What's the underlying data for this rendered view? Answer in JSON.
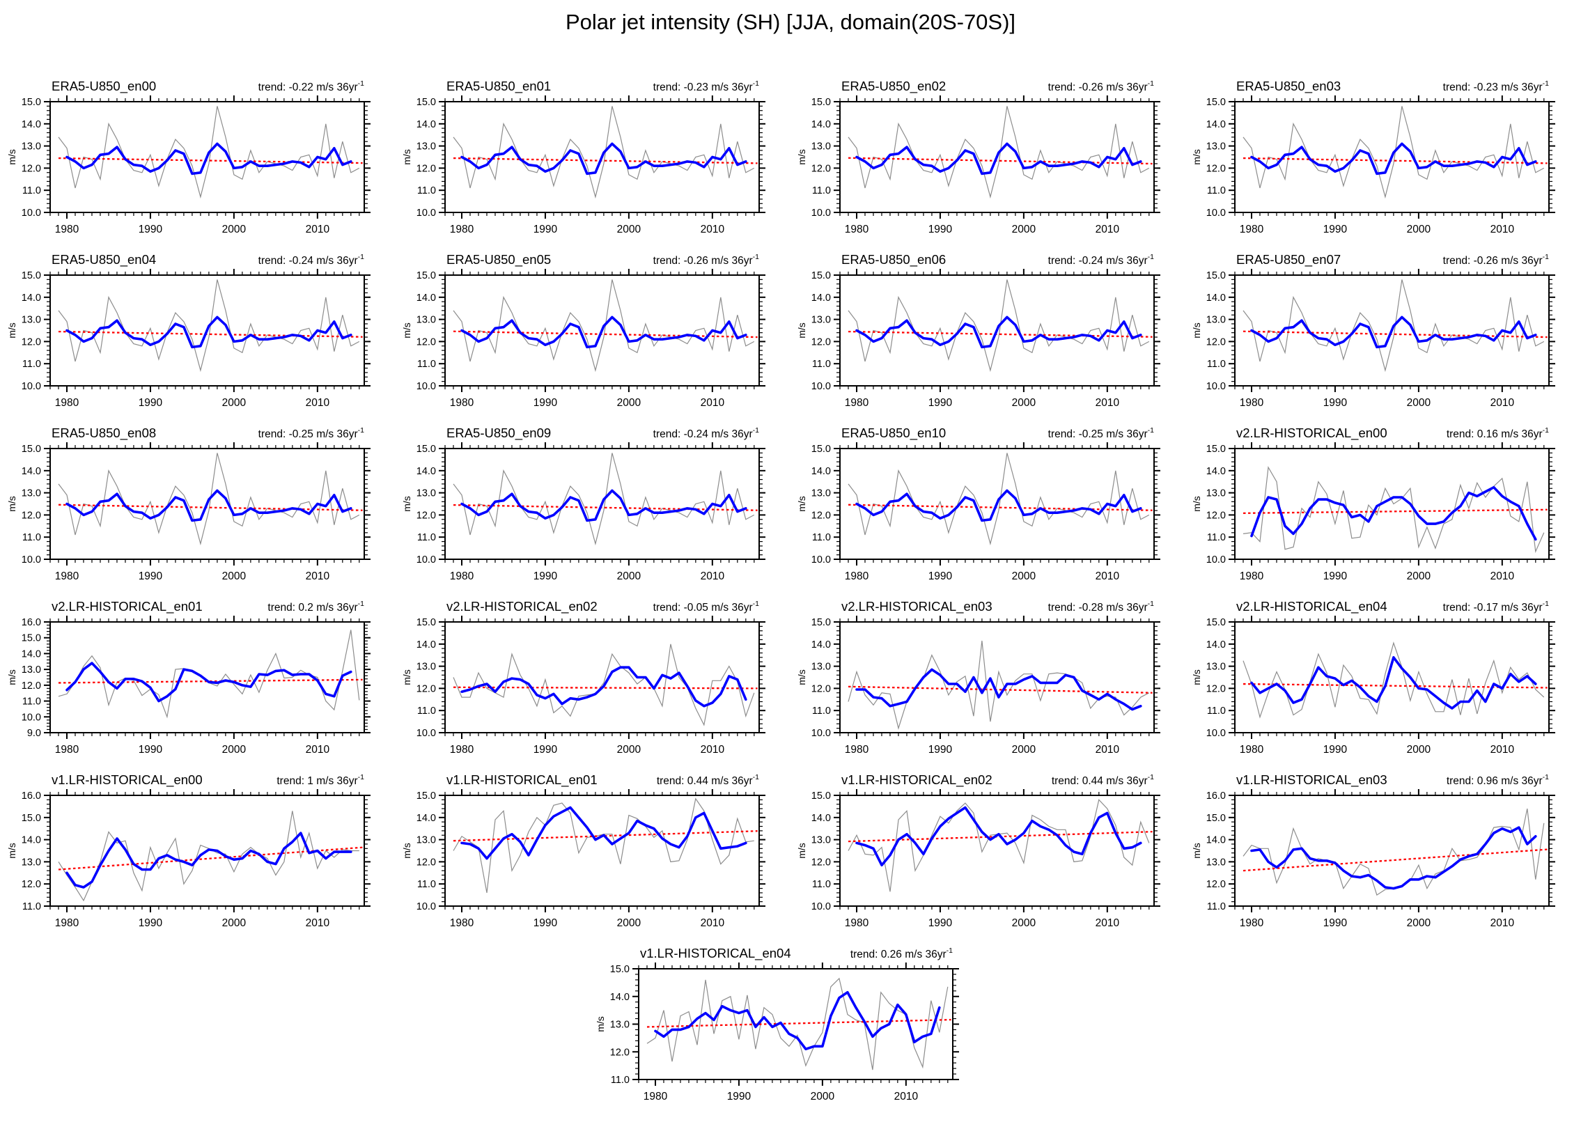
{
  "page": {
    "title": "Polar jet intensity (SH) [JJA, domain(20S-70S)]"
  },
  "colors": {
    "raw": "#8c8c8c",
    "smooth": "#0000ff",
    "trend": "#ff0000",
    "frame": "#000000",
    "text": "#000000"
  },
  "chart_data": {
    "type": "line",
    "title": "Polar jet intensity (SH) [JJA, domain(20S-70S)]",
    "ylabel": "m/s",
    "x_start_year": 1979,
    "x_end_year": 2015,
    "xlim": [
      1978,
      2015.6
    ],
    "xticks": [
      1980,
      1990,
      2000,
      2010
    ],
    "x_minor_step": 1,
    "y_major_step": 1.0,
    "y_minor_step": 0.2,
    "grid": "off",
    "legend": "none",
    "series_meaning": {
      "gray": "annual JJA mean (raw)",
      "blue": "smoothed",
      "red": "linear trend (dashed)"
    },
    "era5_base": {
      "gray": [
        13.4,
        12.9,
        11.1,
        12.5,
        12.4,
        11.5,
        14.0,
        13.3,
        12.4,
        11.9,
        11.8,
        12.6,
        11.2,
        12.4,
        13.3,
        12.9,
        12.1,
        10.7,
        12.2,
        14.8,
        13.4,
        11.7,
        11.5,
        12.8,
        11.8,
        12.3,
        12.2,
        12.1,
        11.9,
        12.5,
        12.6,
        11.65,
        14.0,
        11.55,
        13.2,
        11.8,
        12.0
      ],
      "blue": [
        12.5,
        12.3,
        12.0,
        12.15,
        12.6,
        12.65,
        12.95,
        12.4,
        12.15,
        12.1,
        11.85,
        12.0,
        12.35,
        12.8,
        12.65,
        11.75,
        11.8,
        12.7,
        13.1,
        12.75,
        12.0,
        12.05,
        12.3,
        12.1,
        12.1,
        12.15,
        12.2,
        12.3,
        12.25,
        12.05,
        12.5,
        12.4,
        12.9,
        12.15,
        12.3
      ]
    },
    "panels": [
      {
        "title": "ERA5-U850_en00",
        "trend_text": "trend: -0.22 m/s 36yr",
        "trend_sup": "-1",
        "ylim": [
          10,
          15
        ],
        "series_ref": "era5_base",
        "trend_line": [
          12.45,
          12.23
        ]
      },
      {
        "title": "ERA5-U850_en01",
        "trend_text": "trend: -0.23 m/s 36yr",
        "trend_sup": "-1",
        "ylim": [
          10,
          15
        ],
        "series_ref": "era5_base",
        "trend_line": [
          12.45,
          12.22
        ]
      },
      {
        "title": "ERA5-U850_en02",
        "trend_text": "trend: -0.26 m/s 36yr",
        "trend_sup": "-1",
        "ylim": [
          10,
          15
        ],
        "series_ref": "era5_base",
        "trend_line": [
          12.46,
          12.2
        ]
      },
      {
        "title": "ERA5-U850_en03",
        "trend_text": "trend: -0.23 m/s 36yr",
        "trend_sup": "-1",
        "ylim": [
          10,
          15
        ],
        "series_ref": "era5_base",
        "trend_line": [
          12.45,
          12.22
        ]
      },
      {
        "title": "ERA5-U850_en04",
        "trend_text": "trend: -0.24 m/s 36yr",
        "trend_sup": "-1",
        "ylim": [
          10,
          15
        ],
        "series_ref": "era5_base",
        "trend_line": [
          12.45,
          12.21
        ]
      },
      {
        "title": "ERA5-U850_en05",
        "trend_text": "trend: -0.26 m/s 36yr",
        "trend_sup": "-1",
        "ylim": [
          10,
          15
        ],
        "series_ref": "era5_base",
        "trend_line": [
          12.46,
          12.2
        ]
      },
      {
        "title": "ERA5-U850_en06",
        "trend_text": "trend: -0.24 m/s 36yr",
        "trend_sup": "-1",
        "ylim": [
          10,
          15
        ],
        "series_ref": "era5_base",
        "trend_line": [
          12.45,
          12.21
        ]
      },
      {
        "title": "ERA5-U850_en07",
        "trend_text": "trend: -0.26 m/s 36yr",
        "trend_sup": "-1",
        "ylim": [
          10,
          15
        ],
        "series_ref": "era5_base",
        "trend_line": [
          12.46,
          12.2
        ]
      },
      {
        "title": "ERA5-U850_en08",
        "trend_text": "trend: -0.25 m/s 36yr",
        "trend_sup": "-1",
        "ylim": [
          10,
          15
        ],
        "series_ref": "era5_base",
        "trend_line": [
          12.46,
          12.21
        ]
      },
      {
        "title": "ERA5-U850_en09",
        "trend_text": "trend: -0.24 m/s 36yr",
        "trend_sup": "-1",
        "ylim": [
          10,
          15
        ],
        "series_ref": "era5_base",
        "trend_line": [
          12.45,
          12.21
        ]
      },
      {
        "title": "ERA5-U850_en10",
        "trend_text": "trend: -0.25 m/s 36yr",
        "trend_sup": "-1",
        "ylim": [
          10,
          15
        ],
        "series_ref": "era5_base",
        "trend_line": [
          12.46,
          12.21
        ]
      },
      {
        "title": "v2.LR-HISTORICAL_en00",
        "trend_text": "trend: 0.16 m/s 36yr",
        "trend_sup": "-1",
        "ylim": [
          10,
          15
        ],
        "gray": [
          11.15,
          11.2,
          10.8,
          14.15,
          13.5,
          10.45,
          10.55,
          12.3,
          11.9,
          13.5,
          12.95,
          11.6,
          13.1,
          10.95,
          11.0,
          12.45,
          12.0,
          13.2,
          12.5,
          12.75,
          13.2,
          10.55,
          11.45,
          10.5,
          11.6,
          11.8,
          13.35,
          12.3,
          13.45,
          12.8,
          13.3,
          13.65,
          11.95,
          11.7,
          13.5,
          10.35,
          11.2
        ],
        "blue": [
          11.05,
          12.1,
          12.8,
          12.7,
          11.5,
          11.15,
          11.6,
          12.3,
          12.7,
          12.7,
          12.55,
          12.45,
          11.9,
          12.0,
          11.7,
          12.4,
          12.6,
          12.8,
          12.8,
          12.5,
          11.95,
          11.6,
          11.6,
          11.7,
          12.1,
          12.4,
          13.0,
          12.85,
          13.05,
          13.25,
          12.85,
          12.6,
          12.4,
          11.6,
          10.9
        ],
        "trend_line": [
          12.08,
          12.24
        ]
      },
      {
        "title": "v2.LR-HISTORICAL_en01",
        "trend_text": "trend: 0.2 m/s 36yr",
        "trend_sup": "-1",
        "ylim": [
          9,
          16
        ],
        "gray": [
          11.3,
          11.45,
          12.2,
          13.2,
          13.85,
          13.1,
          10.75,
          12.2,
          12.45,
          12.3,
          11.35,
          11.75,
          11.4,
          10.0,
          13.0,
          13.05,
          12.95,
          12.55,
          12.15,
          11.95,
          12.7,
          12.05,
          11.45,
          12.65,
          11.55,
          12.95,
          14.0,
          12.45,
          12.5,
          12.95,
          12.65,
          12.5,
          11.0,
          10.45,
          12.9,
          15.5,
          11.05
        ],
        "blue": [
          11.7,
          12.2,
          13.0,
          13.4,
          12.85,
          12.2,
          11.8,
          12.4,
          12.4,
          12.25,
          11.85,
          11.0,
          11.3,
          11.75,
          13.0,
          12.9,
          12.6,
          12.2,
          12.15,
          12.3,
          12.2,
          12.0,
          11.9,
          12.7,
          12.65,
          12.9,
          12.95,
          12.65,
          12.7,
          12.7,
          12.3,
          11.45,
          11.3,
          12.6,
          12.85
        ],
        "trend_line": [
          12.15,
          12.35
        ]
      },
      {
        "title": "v2.LR-HISTORICAL_en02",
        "trend_text": "trend: -0.05 m/s 36yr",
        "trend_sup": "-1",
        "ylim": [
          10,
          15
        ],
        "gray": [
          12.5,
          11.6,
          11.6,
          12.7,
          12.0,
          11.8,
          11.6,
          13.55,
          12.6,
          12.0,
          11.2,
          12.4,
          10.9,
          11.2,
          10.75,
          11.65,
          11.7,
          11.75,
          12.25,
          13.55,
          13.0,
          12.7,
          12.2,
          12.5,
          12.0,
          11.2,
          14.0,
          12.5,
          12.05,
          11.1,
          10.35,
          12.35,
          12.35,
          13.0,
          12.3,
          10.75,
          11.8
        ],
        "blue": [
          11.85,
          11.95,
          12.1,
          12.2,
          11.85,
          12.3,
          12.45,
          12.4,
          12.2,
          11.7,
          11.55,
          11.75,
          11.3,
          11.55,
          11.5,
          11.6,
          11.75,
          12.1,
          12.75,
          12.95,
          12.95,
          12.5,
          12.5,
          12.0,
          12.6,
          12.45,
          12.7,
          12.1,
          11.45,
          11.2,
          11.35,
          11.75,
          12.55,
          12.4,
          11.5
        ],
        "trend_line": [
          12.05,
          12.0
        ]
      },
      {
        "title": "v2.LR-HISTORICAL_en03",
        "trend_text": "trend: -0.28 m/s 36yr",
        "trend_sup": "-1",
        "ylim": [
          10,
          15
        ],
        "gray": [
          11.4,
          12.75,
          11.7,
          11.25,
          11.8,
          11.75,
          10.2,
          11.4,
          12.05,
          12.45,
          13.5,
          12.75,
          11.7,
          12.3,
          12.55,
          10.75,
          14.15,
          10.5,
          12.75,
          11.7,
          12.35,
          12.65,
          12.65,
          11.45,
          12.65,
          12.7,
          12.65,
          12.5,
          12.25,
          11.1,
          11.55,
          11.65,
          11.6,
          10.8,
          11.15,
          11.6,
          11.8
        ],
        "blue": [
          11.95,
          11.95,
          11.6,
          11.55,
          11.2,
          11.3,
          11.4,
          12.0,
          12.5,
          12.85,
          12.6,
          12.2,
          12.2,
          11.85,
          12.5,
          11.8,
          12.45,
          11.6,
          12.2,
          12.2,
          12.4,
          12.55,
          12.25,
          12.25,
          12.25,
          12.6,
          12.5,
          11.9,
          11.7,
          11.5,
          11.75,
          11.5,
          11.3,
          11.05,
          11.2
        ],
        "trend_line": [
          12.08,
          11.8
        ]
      },
      {
        "title": "v2.LR-HISTORICAL_en04",
        "trend_text": "trend: -0.17 m/s 36yr",
        "trend_sup": "-1",
        "ylim": [
          10,
          15
        ],
        "gray": [
          13.25,
          12.2,
          10.7,
          11.8,
          12.75,
          11.95,
          10.8,
          11.05,
          12.3,
          13.55,
          12.7,
          11.15,
          13.05,
          12.55,
          11.55,
          11.5,
          10.85,
          12.65,
          14.05,
          12.95,
          11.45,
          12.75,
          11.75,
          10.95,
          10.95,
          12.4,
          10.8,
          12.45,
          10.85,
          12.25,
          13.25,
          11.8,
          12.95,
          12.4,
          12.7,
          11.95,
          11.6
        ],
        "blue": [
          12.25,
          11.8,
          12.0,
          12.2,
          11.9,
          11.35,
          11.5,
          12.2,
          12.95,
          12.55,
          12.45,
          12.15,
          12.35,
          12.05,
          11.65,
          11.4,
          12.1,
          13.4,
          12.9,
          12.5,
          12.0,
          11.95,
          11.65,
          11.35,
          11.1,
          11.4,
          11.4,
          11.9,
          11.4,
          12.2,
          12.0,
          12.65,
          12.3,
          12.55,
          12.2
        ],
        "trend_line": [
          12.2,
          12.03
        ]
      },
      {
        "title": "v1.LR-HISTORICAL_en00",
        "trend_text": "trend: 1 m/s 36yr",
        "trend_sup": "-1",
        "ylim": [
          11,
          16
        ],
        "gray": [
          13.0,
          12.4,
          11.85,
          11.25,
          12.1,
          13.0,
          14.35,
          13.85,
          13.95,
          12.5,
          11.7,
          13.65,
          12.7,
          13.4,
          14.05,
          12.0,
          12.6,
          13.75,
          13.6,
          13.4,
          13.35,
          12.55,
          13.35,
          13.65,
          13.35,
          13.15,
          12.4,
          13.0,
          15.3,
          13.2,
          14.3,
          12.7,
          13.5,
          13.2,
          13.55,
          13.5,
          13.5
        ],
        "blue": [
          12.5,
          11.95,
          11.85,
          12.1,
          12.85,
          13.5,
          14.05,
          13.55,
          12.9,
          12.65,
          12.65,
          13.15,
          13.3,
          13.1,
          13.0,
          12.85,
          13.3,
          13.55,
          13.5,
          13.25,
          13.1,
          13.15,
          13.5,
          13.35,
          13.0,
          12.9,
          13.6,
          13.9,
          14.3,
          13.4,
          13.5,
          13.15,
          13.45,
          13.45,
          13.45
        ],
        "trend_line": [
          12.65,
          13.65
        ]
      },
      {
        "title": "v1.LR-HISTORICAL_en01",
        "trend_text": "trend: 0.44 m/s 36yr",
        "trend_sup": "-1",
        "ylim": [
          10,
          15
        ],
        "gray": [
          12.5,
          13.15,
          12.9,
          12.65,
          10.6,
          13.9,
          14.3,
          11.6,
          12.3,
          13.35,
          14.0,
          13.65,
          14.55,
          14.65,
          14.2,
          12.4,
          13.1,
          13.15,
          13.25,
          13.25,
          11.9,
          14.1,
          13.95,
          13.6,
          13.1,
          13.4,
          12.0,
          12.05,
          13.0,
          14.85,
          14.3,
          13.0,
          11.9,
          12.3,
          13.95,
          12.9,
          12.95
        ],
        "blue": [
          12.85,
          12.8,
          12.6,
          12.15,
          12.6,
          13.05,
          13.25,
          12.9,
          12.3,
          13.0,
          13.65,
          14.05,
          14.25,
          14.45,
          14.0,
          13.55,
          13.0,
          13.2,
          12.8,
          13.05,
          13.3,
          13.85,
          13.65,
          13.5,
          13.05,
          12.8,
          12.65,
          13.15,
          14.0,
          14.2,
          13.4,
          12.6,
          12.65,
          12.7,
          12.85
        ],
        "trend_line": [
          12.95,
          13.39
        ]
      },
      {
        "title": "v1.LR-HISTORICAL_en02",
        "trend_text": "trend: 0.44 m/s 36yr",
        "trend_sup": "-1",
        "ylim": [
          10,
          15
        ],
        "gray": [
          12.5,
          13.2,
          12.35,
          12.3,
          12.65,
          10.65,
          13.9,
          14.3,
          11.6,
          12.3,
          13.2,
          14.05,
          13.75,
          14.3,
          14.65,
          14.2,
          12.45,
          13.2,
          13.25,
          13.3,
          12.85,
          11.95,
          14.1,
          13.9,
          13.6,
          13.45,
          13.45,
          12.0,
          12.05,
          13.15,
          14.8,
          14.4,
          13.65,
          12.2,
          11.85,
          13.8,
          12.85
        ],
        "blue": [
          12.85,
          12.75,
          12.6,
          11.85,
          12.3,
          13.0,
          13.25,
          12.85,
          12.35,
          13.05,
          13.6,
          13.95,
          14.2,
          14.45,
          13.9,
          13.35,
          13.0,
          13.25,
          12.8,
          13.0,
          13.3,
          13.85,
          13.6,
          13.45,
          13.2,
          12.75,
          12.45,
          12.35,
          13.3,
          14.0,
          14.2,
          13.3,
          12.6,
          12.65,
          12.85
        ],
        "trend_line": [
          12.92,
          13.36
        ]
      },
      {
        "title": "v1.LR-HISTORICAL_en03",
        "trend_text": "trend: 0.96 m/s 36yr",
        "trend_sup": "-1",
        "ylim": [
          11,
          16
        ],
        "gray": [
          13.25,
          13.75,
          13.6,
          13.6,
          12.05,
          12.9,
          14.5,
          13.6,
          12.9,
          13.15,
          13.05,
          13.0,
          11.8,
          12.35,
          12.9,
          12.7,
          11.5,
          11.75,
          11.8,
          11.9,
          12.15,
          12.85,
          11.8,
          12.45,
          12.6,
          13.6,
          13.05,
          13.1,
          13.2,
          13.75,
          14.55,
          14.6,
          14.55,
          13.55,
          15.4,
          12.2,
          14.75
        ],
        "blue": [
          13.5,
          13.55,
          13.0,
          12.75,
          13.05,
          13.55,
          13.6,
          13.15,
          13.05,
          13.05,
          12.95,
          12.6,
          12.35,
          12.3,
          12.4,
          12.15,
          11.85,
          11.8,
          11.9,
          12.2,
          12.2,
          12.35,
          12.3,
          12.55,
          12.8,
          13.1,
          13.25,
          13.35,
          13.8,
          14.3,
          14.5,
          14.35,
          14.55,
          13.8,
          14.15
        ],
        "trend_line": [
          12.6,
          13.56
        ]
      },
      {
        "title": "v1.LR-HISTORICAL_en04",
        "trend_text": "trend: 0.26 m/s 36yr",
        "trend_sup": "-1",
        "ylim": [
          11,
          15
        ],
        "gray": [
          12.3,
          12.5,
          13.5,
          11.65,
          13.3,
          13.45,
          12.25,
          14.6,
          12.65,
          13.85,
          14.0,
          12.45,
          14.05,
          12.1,
          13.6,
          13.35,
          12.5,
          12.2,
          12.6,
          11.5,
          12.2,
          12.7,
          14.35,
          14.65,
          13.35,
          13.15,
          13.05,
          11.35,
          14.15,
          13.75,
          13.5,
          13.35,
          12.15,
          11.45,
          13.85,
          12.7,
          14.35
        ],
        "blue": [
          12.75,
          12.55,
          12.8,
          12.8,
          12.9,
          13.2,
          13.4,
          13.15,
          13.65,
          13.5,
          13.4,
          13.5,
          12.9,
          13.25,
          12.9,
          13.05,
          12.65,
          12.5,
          12.1,
          12.2,
          12.2,
          13.3,
          13.95,
          14.15,
          13.6,
          13.1,
          12.55,
          12.85,
          13.0,
          13.7,
          13.35,
          12.35,
          12.55,
          12.65,
          13.6
        ],
        "trend_line": [
          12.9,
          13.16
        ]
      }
    ]
  }
}
